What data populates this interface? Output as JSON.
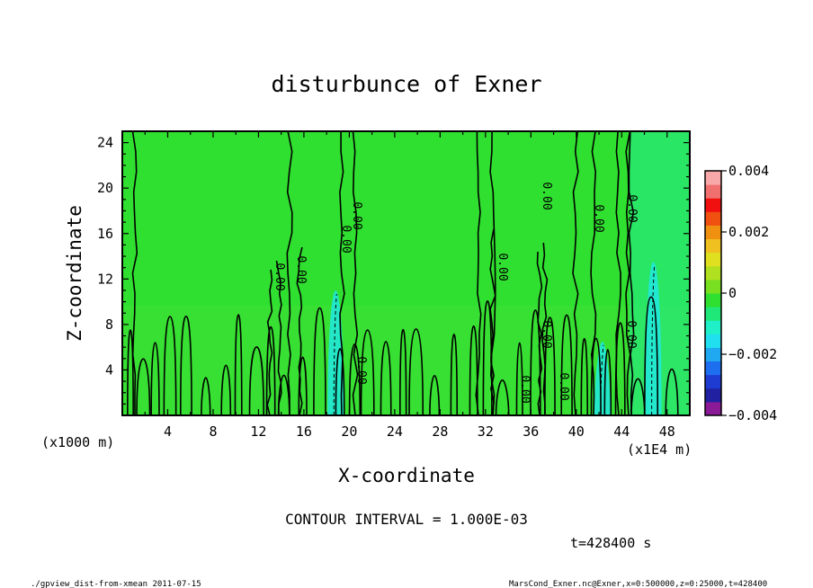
{
  "chart_data": {
    "type": "heatmap",
    "title": "disturbunce of Exner",
    "xlabel": "X-coordinate",
    "ylabel": "Z-coordinate",
    "x_unit_label": "(x1000 m)",
    "x_scale_label": "(x1E4 m)",
    "x_ticks": [
      "4",
      "8",
      "12",
      "16",
      "20",
      "24",
      "28",
      "32",
      "36",
      "40",
      "44",
      "48"
    ],
    "y_ticks": [
      "4",
      "8",
      "12",
      "16",
      "20",
      "24"
    ],
    "xlim": [
      0,
      50
    ],
    "ylim": [
      0,
      25
    ],
    "colorbar": {
      "ticks": [
        "0.004",
        "0.002",
        "0",
        "−0.002",
        "−0.004"
      ],
      "range": [
        -0.004,
        0.004
      ],
      "colors": [
        "#8a1a96",
        "#2020a0",
        "#1e3cd2",
        "#1e6ef0",
        "#20a8f0",
        "#20e0f0",
        "#20f0c8",
        "#20e878",
        "#30e030",
        "#78e020",
        "#b0e020",
        "#e0e020",
        "#f0c020",
        "#f09010",
        "#f05010",
        "#f01010",
        "#f07070",
        "#f8a8a8"
      ]
    },
    "contour_label": "0.00",
    "contour_interval_text": "CONTOUR INTERVAL = 1.000E-03",
    "background_value": 0,
    "negative_bands": [
      {
        "x": 18.8,
        "z_top": 11.0,
        "value": -0.001
      },
      {
        "x": 42.3,
        "z_top": 6.5,
        "value": -0.001
      },
      {
        "x": 46.8,
        "z_top": 13.5,
        "value": -0.001
      }
    ]
  },
  "footer": {
    "time": "t=428400 s",
    "left_note": "./gpview_dist-from-xmean  2011-07-15",
    "right_note": "MarsCond_Exner.nc@Exner,x=0:500000,z=0:25000,t=428400"
  }
}
